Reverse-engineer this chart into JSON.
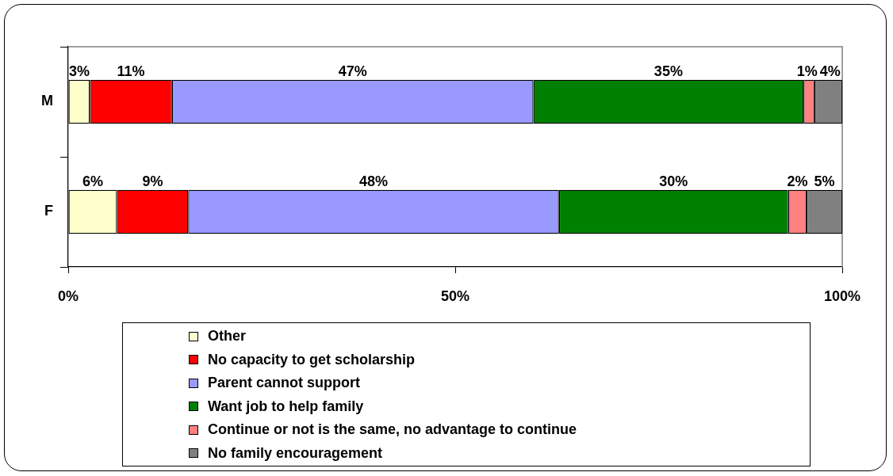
{
  "chart_data": {
    "type": "bar",
    "orientation": "horizontal",
    "stacked": true,
    "categories": [
      "M",
      "F"
    ],
    "series": [
      {
        "name": "Other",
        "color": "#ffffcc",
        "values": [
          2.8,
          6.3
        ],
        "value_labels": [
          "3%",
          "6%"
        ]
      },
      {
        "name": "No capacity to get scholarship",
        "color": "#ff0000",
        "values": [
          10.6,
          9.2
        ],
        "value_labels": [
          "11%",
          "9%"
        ]
      },
      {
        "name": "Parent cannot support",
        "color": "#9999ff",
        "values": [
          46.7,
          47.9
        ],
        "value_labels": [
          "47%",
          "48%"
        ]
      },
      {
        "name": "Want job to help family",
        "color": "#008000",
        "values": [
          34.9,
          29.6
        ],
        "value_labels": [
          "35%",
          "30%"
        ]
      },
      {
        "name": "Continue or not is the same, no advantage to continue",
        "color": "#ff8080",
        "values": [
          1.4,
          2.4
        ],
        "value_labels": [
          "1%",
          "2%"
        ]
      },
      {
        "name": "No family encouragement",
        "color": "#808080",
        "values": [
          3.6,
          4.6
        ],
        "value_labels": [
          "4%",
          "5%"
        ]
      }
    ],
    "xlim": [
      0,
      100
    ],
    "xticks": [
      {
        "value": 0,
        "label": "0%"
      },
      {
        "value": 50,
        "label": "50%"
      },
      {
        "value": 100,
        "label": "100%"
      }
    ],
    "legend": "bottom"
  }
}
